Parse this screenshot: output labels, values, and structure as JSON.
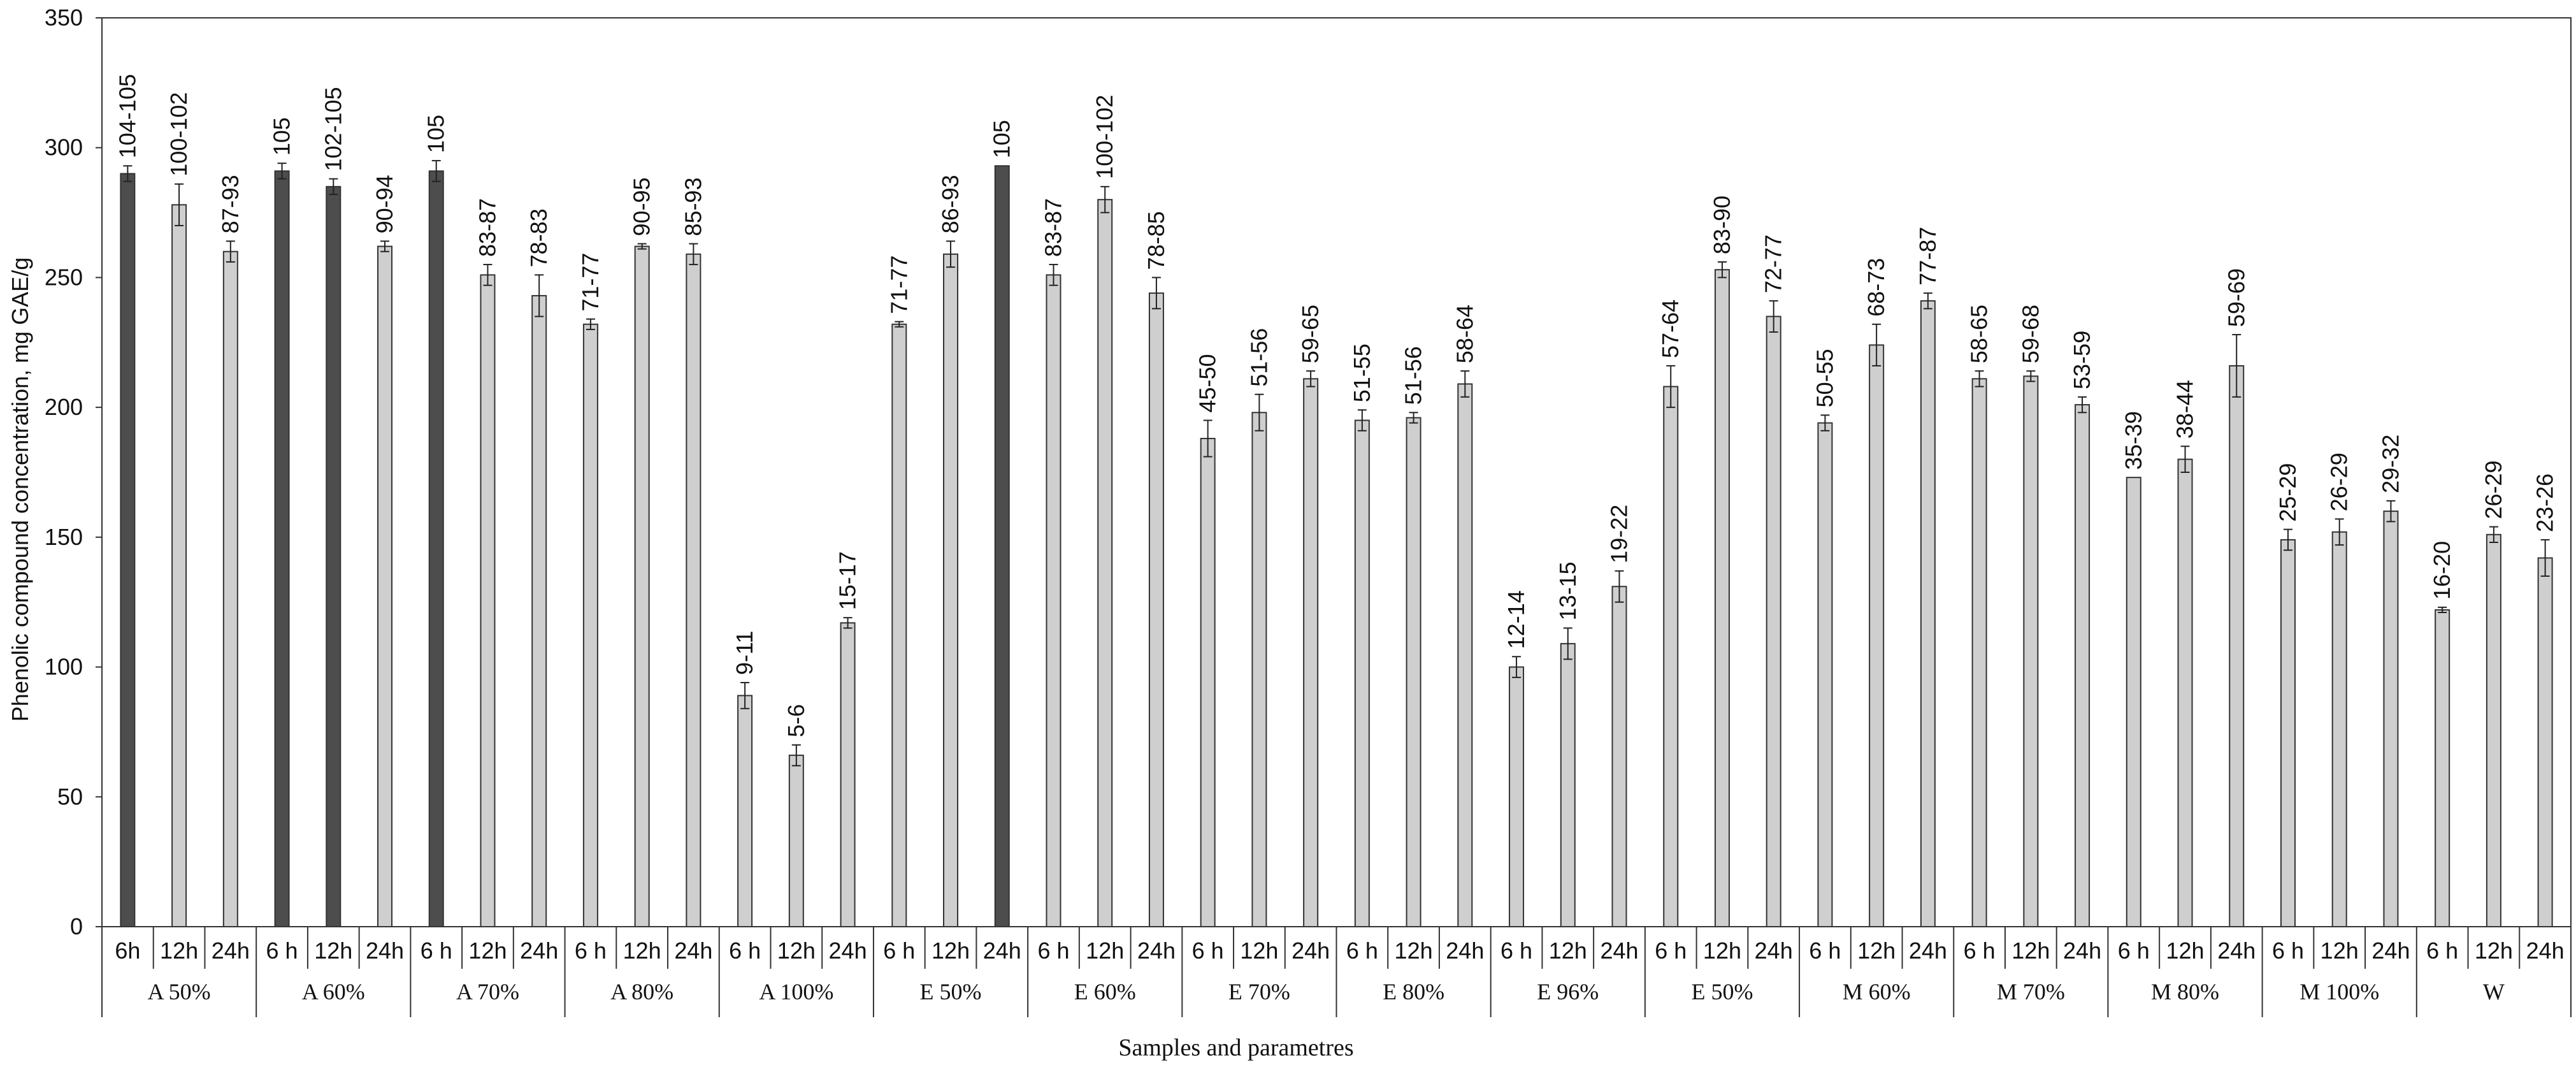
{
  "chart_data": {
    "type": "bar",
    "ylabel": "Phenolic compound concentration, mg GAE/g",
    "xlabel": "Samples and parametres",
    "ylim": [
      0,
      350
    ],
    "yticks": [
      0,
      50,
      100,
      150,
      200,
      250,
      300,
      350
    ],
    "grid": false,
    "colors": {
      "dark": "#4d4d4d",
      "light": "#cfcfcf",
      "stroke": "#333333"
    },
    "groups": [
      {
        "name": "A 50%",
        "bars": [
          {
            "time": "6h",
            "value": 290,
            "error": 3,
            "label": "104-105",
            "color": "dark"
          },
          {
            "time": "12h",
            "value": 278,
            "error": 8,
            "label": "100-102",
            "color": "light"
          },
          {
            "time": "24h",
            "value": 260,
            "error": 4,
            "label": "87-93",
            "color": "light"
          }
        ]
      },
      {
        "name": "A 60%",
        "bars": [
          {
            "time": "6 h",
            "value": 291,
            "error": 3,
            "label": "105",
            "color": "dark"
          },
          {
            "time": "12h",
            "value": 285,
            "error": 3,
            "label": "102-105",
            "color": "dark"
          },
          {
            "time": "24h",
            "value": 262,
            "error": 2,
            "label": "90-94",
            "color": "light"
          }
        ]
      },
      {
        "name": "A 70%",
        "bars": [
          {
            "time": "6 h",
            "value": 291,
            "error": 4,
            "label": "105",
            "color": "dark"
          },
          {
            "time": "12h",
            "value": 251,
            "error": 4,
            "label": "83-87",
            "color": "light"
          },
          {
            "time": "24h",
            "value": 243,
            "error": 8,
            "label": "78-83",
            "color": "light"
          }
        ]
      },
      {
        "name": "A 80%",
        "bars": [
          {
            "time": "6 h",
            "value": 232,
            "error": 2,
            "label": "71-77",
            "color": "light"
          },
          {
            "time": "12h",
            "value": 262,
            "error": 1,
            "label": "90-95",
            "color": "light"
          },
          {
            "time": "24h",
            "value": 259,
            "error": 4,
            "label": "85-93",
            "color": "light"
          }
        ]
      },
      {
        "name": "A 100%",
        "bars": [
          {
            "time": "6 h",
            "value": 89,
            "error": 5,
            "label": "9-11",
            "color": "light"
          },
          {
            "time": "12h",
            "value": 66,
            "error": 4,
            "label": "5-6",
            "color": "light"
          },
          {
            "time": "24h",
            "value": 117,
            "error": 2,
            "label": "15-17",
            "color": "light"
          }
        ]
      },
      {
        "name": "E 50%",
        "bars": [
          {
            "time": "6 h",
            "value": 232,
            "error": 1,
            "label": "71-77",
            "color": "light"
          },
          {
            "time": "12h",
            "value": 259,
            "error": 5,
            "label": "86-93",
            "color": "light"
          },
          {
            "time": "24h",
            "value": 293,
            "error": 0,
            "label": "105",
            "color": "dark"
          }
        ]
      },
      {
        "name": "E 60%",
        "bars": [
          {
            "time": "6 h",
            "value": 251,
            "error": 4,
            "label": "83-87",
            "color": "light"
          },
          {
            "time": "12h",
            "value": 280,
            "error": 5,
            "label": "100-102",
            "color": "light"
          },
          {
            "time": "24h",
            "value": 244,
            "error": 6,
            "label": "78-85",
            "color": "light"
          }
        ]
      },
      {
        "name": "E 70%",
        "bars": [
          {
            "time": "6 h",
            "value": 188,
            "error": 7,
            "label": "45-50",
            "color": "light"
          },
          {
            "time": "12h",
            "value": 198,
            "error": 7,
            "label": "51-56",
            "color": "light"
          },
          {
            "time": "24h",
            "value": 211,
            "error": 3,
            "label": "59-65",
            "color": "light"
          }
        ]
      },
      {
        "name": "E 80%",
        "bars": [
          {
            "time": "6 h",
            "value": 195,
            "error": 4,
            "label": "51-55",
            "color": "light"
          },
          {
            "time": "12h",
            "value": 196,
            "error": 2,
            "label": "51-56",
            "color": "light"
          },
          {
            "time": "24h",
            "value": 209,
            "error": 5,
            "label": "58-64",
            "color": "light"
          }
        ]
      },
      {
        "name": "E 96%",
        "bars": [
          {
            "time": "6 h",
            "value": 100,
            "error": 4,
            "label": "12-14",
            "color": "light"
          },
          {
            "time": "12h",
            "value": 109,
            "error": 6,
            "label": "13-15",
            "color": "light"
          },
          {
            "time": "24h",
            "value": 131,
            "error": 6,
            "label": "19-22",
            "color": "light"
          }
        ]
      },
      {
        "name": "E 50%",
        "bars": [
          {
            "time": "6 h",
            "value": 208,
            "error": 8,
            "label": "57-64",
            "color": "light"
          },
          {
            "time": "12h",
            "value": 253,
            "error": 3,
            "label": "83-90",
            "color": "light"
          },
          {
            "time": "24h",
            "value": 235,
            "error": 6,
            "label": "72-77",
            "color": "light"
          }
        ]
      },
      {
        "name": "M 60%",
        "bars": [
          {
            "time": "6 h",
            "value": 194,
            "error": 3,
            "label": "50-55",
            "color": "light"
          },
          {
            "time": "12h",
            "value": 224,
            "error": 8,
            "label": "68-73",
            "color": "light"
          },
          {
            "time": "24h",
            "value": 241,
            "error": 3,
            "label": "77-87",
            "color": "light"
          }
        ]
      },
      {
        "name": "M 70%",
        "bars": [
          {
            "time": "6 h",
            "value": 211,
            "error": 3,
            "label": "58-65",
            "color": "light"
          },
          {
            "time": "12h",
            "value": 212,
            "error": 2,
            "label": "59-68",
            "color": "light"
          },
          {
            "time": "24h",
            "value": 201,
            "error": 3,
            "label": "53-59",
            "color": "light"
          }
        ]
      },
      {
        "name": "M 80%",
        "bars": [
          {
            "time": "6 h",
            "value": 173,
            "error": 0,
            "label": "35-39",
            "color": "light"
          },
          {
            "time": "12h",
            "value": 180,
            "error": 5,
            "label": "38-44",
            "color": "light"
          },
          {
            "time": "24h",
            "value": 216,
            "error": 12,
            "label": "59-69",
            "color": "light"
          }
        ]
      },
      {
        "name": "M 100%",
        "bars": [
          {
            "time": "6 h",
            "value": 149,
            "error": 4,
            "label": "25-29",
            "color": "light"
          },
          {
            "time": "12h",
            "value": 152,
            "error": 5,
            "label": "26-29",
            "color": "light"
          },
          {
            "time": "24h",
            "value": 160,
            "error": 4,
            "label": "29-32",
            "color": "light"
          }
        ]
      },
      {
        "name": "W",
        "bars": [
          {
            "time": "6 h",
            "value": 122,
            "error": 1,
            "label": "16-20",
            "color": "light"
          },
          {
            "time": "12h",
            "value": 151,
            "error": 3,
            "label": "26-29",
            "color": "light"
          },
          {
            "time": "24h",
            "value": 142,
            "error": 7,
            "label": "23-26",
            "color": "light"
          }
        ]
      }
    ]
  }
}
